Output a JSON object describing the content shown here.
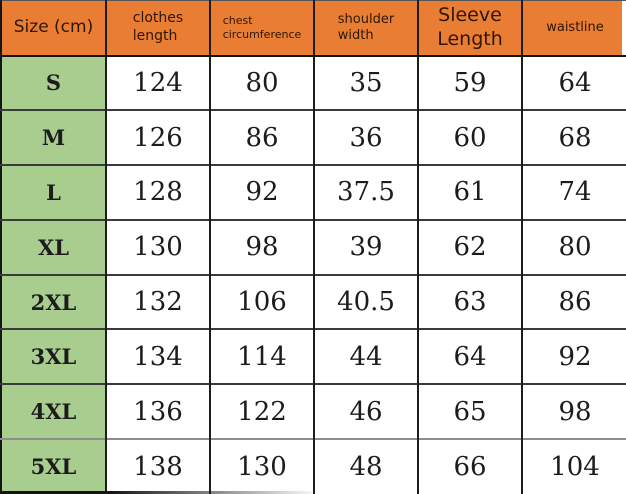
{
  "colors": {
    "header_bg": "#e87d33",
    "size_column_bg": "#a8cd8f",
    "header_text": "#2e1605",
    "cell_text": "#1c1c1c"
  },
  "ui": {
    "columns": [
      {
        "key": "size",
        "label": "Size (cm)"
      },
      {
        "key": "clothes-length",
        "label": "clothes\nlength"
      },
      {
        "key": "chest-circumference",
        "label": "chest\ncircumference"
      },
      {
        "key": "shoulder-width",
        "label": "shoulder\nwidth"
      },
      {
        "key": "sleeve-length",
        "label": "Sleeve\nLength"
      },
      {
        "key": "waistline",
        "label": "waistline"
      }
    ]
  },
  "chart_data": {
    "type": "table",
    "title": "Size (cm)",
    "columns": [
      "Size (cm)",
      "clothes length",
      "chest circumference",
      "shoulder width",
      "Sleeve Length",
      "waistline"
    ],
    "rows": [
      [
        "S",
        124,
        80,
        35,
        59,
        64
      ],
      [
        "M",
        126,
        86,
        36,
        60,
        68
      ],
      [
        "L",
        128,
        92,
        37.5,
        61,
        74
      ],
      [
        "XL",
        130,
        98,
        39,
        62,
        80
      ],
      [
        "2XL",
        132,
        106,
        40.5,
        63,
        86
      ],
      [
        "3XL",
        134,
        114,
        44,
        64,
        92
      ],
      [
        "4XL",
        136,
        122,
        46,
        65,
        98
      ],
      [
        "5XL",
        138,
        130,
        48,
        66,
        104
      ]
    ]
  }
}
